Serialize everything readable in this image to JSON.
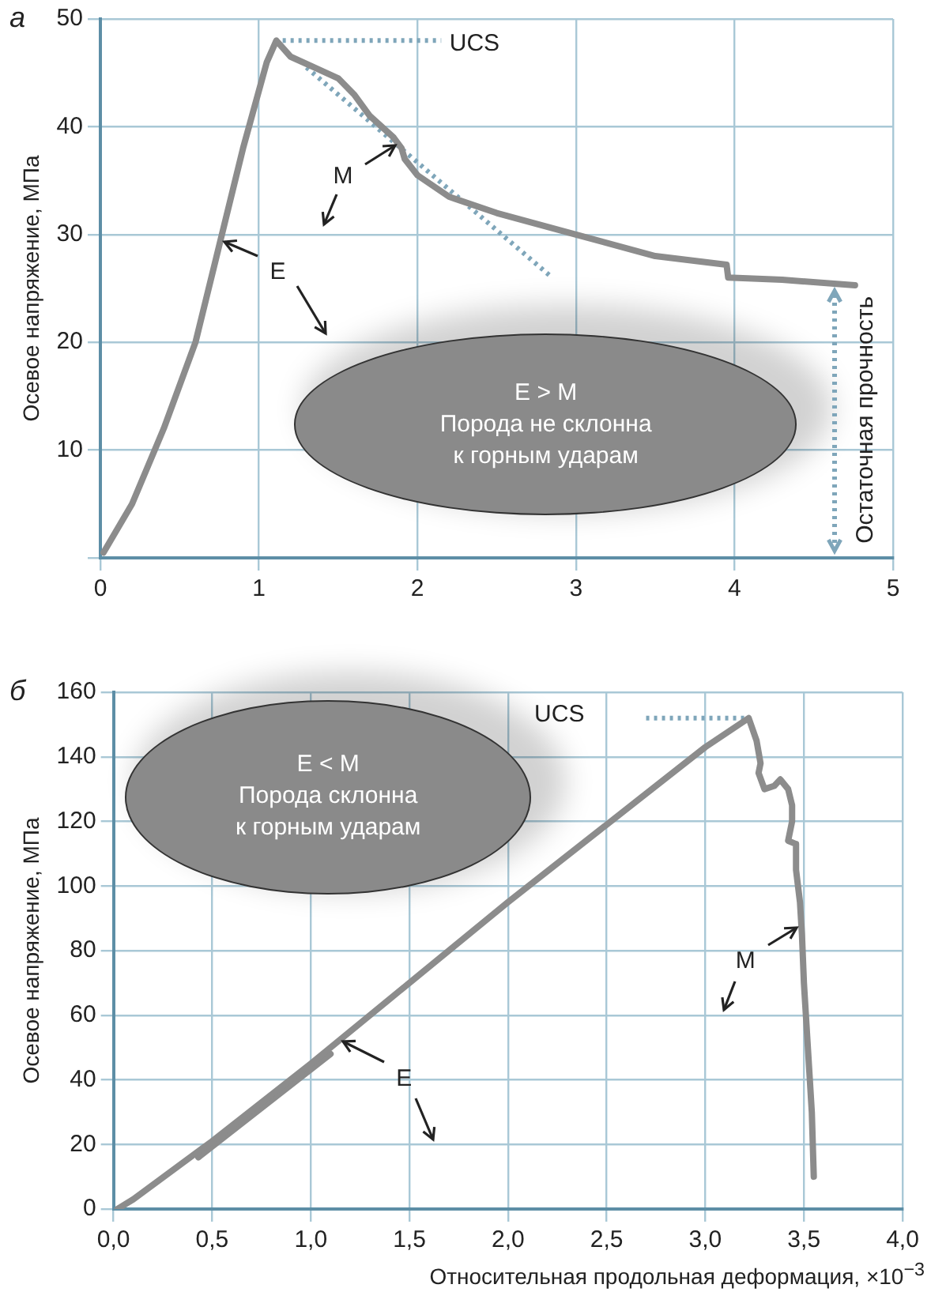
{
  "chart_data": [
    {
      "type": "line",
      "title": "а",
      "ylabel": "Осевое напряжение, МПа",
      "xlim": [
        0,
        5
      ],
      "xticks": [
        0,
        1,
        2,
        3,
        4,
        5
      ],
      "ylim": [
        0,
        50
      ],
      "yticks": [
        {
          "value": 0,
          "label": null
        },
        10,
        20,
        30,
        40,
        50
      ],
      "grid": true,
      "legend": false,
      "marker": "none",
      "series": [
        {
          "color": "#8c8c8c",
          "line_style": "solid",
          "x": [
            0.02,
            0.2,
            0.4,
            0.6,
            0.75,
            0.9,
            1.05,
            1.11,
            1.2,
            1.35,
            1.5,
            1.6,
            1.7,
            1.85,
            1.9,
            1.92,
            2.0,
            2.2,
            2.5,
            3.0,
            3.5,
            3.95,
            3.96,
            4.3,
            4.76
          ],
          "values": [
            0.5,
            5,
            12,
            20,
            29,
            38,
            46,
            48,
            46.5,
            45.5,
            44.5,
            43,
            41,
            39,
            38,
            37,
            35.5,
            33.5,
            32,
            30,
            28,
            27.2,
            26,
            25.8,
            25.3
          ]
        },
        {
          "color": "#7fa6ba",
          "line_style": "dotted",
          "x": [
            1.3,
            2.85
          ],
          "values": [
            45.5,
            26
          ]
        },
        {
          "color": "#7fa6ba",
          "line_style": "dotted",
          "x": [
            1.15,
            2.15
          ],
          "values": [
            48,
            48
          ]
        }
      ],
      "annotations": [
        "E > M\nПорода не склонна\nк горным ударам",
        "UCS",
        {
          "text": "E",
          "x": 0.78,
          "y": 29.3
        },
        {
          "text": "M",
          "x": 1.86,
          "y": 38.3
        },
        "Остаточная прочность"
      ]
    },
    {
      "type": "line",
      "title": "б",
      "xlabel": "Относительная продольная деформация, ×10$^{−3}$",
      "ylabel": "Осевое напряжение, МПа",
      "xlim": [
        0,
        4
      ],
      "xticks": [
        {
          "value": 0,
          "label": "0,0"
        },
        {
          "value": 0.5,
          "label": "0,5"
        },
        {
          "value": 1,
          "label": "1,0"
        },
        {
          "value": 1.5,
          "label": "1,5"
        },
        {
          "value": 2,
          "label": "2,0"
        },
        {
          "value": 2.5,
          "label": "2,5"
        },
        {
          "value": 3,
          "label": "3,0"
        },
        {
          "value": 3.5,
          "label": "3,5"
        },
        {
          "value": 4,
          "label": "4,0"
        }
      ],
      "ylim": [
        0,
        160
      ],
      "yticks": [
        0,
        20,
        40,
        60,
        80,
        100,
        120,
        140,
        160
      ],
      "grid": true,
      "legend": false,
      "marker": "none",
      "series": [
        {
          "color": "#8c8c8c",
          "line_style": "solid",
          "x": [
            0.02,
            0.1,
            0.5,
            1.0,
            1.5,
            2.0,
            2.5,
            3.0,
            3.22,
            3.26,
            3.28,
            3.27,
            3.3,
            3.35,
            3.38,
            3.42,
            3.44,
            3.44,
            3.42,
            3.46,
            3.46,
            3.48,
            3.49,
            3.5,
            3.52,
            3.54,
            3.55
          ],
          "values": [
            0,
            3,
            21,
            45,
            70,
            95,
            119,
            143,
            152,
            145,
            138,
            135,
            130,
            131,
            133,
            130,
            125,
            120,
            114,
            113,
            105,
            95,
            85,
            70,
            50,
            30,
            10
          ]
        },
        {
          "color": "#8c8c8c",
          "line_style": "solid",
          "x": [
            0.43,
            1.1
          ],
          "values": [
            16,
            48
          ]
        },
        {
          "color": "#7fa6ba",
          "line_style": "dotted",
          "x": [
            2.7,
            3.2
          ],
          "values": [
            152,
            152
          ]
        }
      ],
      "annotations": [
        "E < M\nПорода склонна\nк горным ударам",
        "UCS",
        {
          "text": "E",
          "x": 1.16,
          "y": 52
        },
        {
          "text": "M",
          "x": 3.46,
          "y": 87
        }
      ]
    }
  ]
}
